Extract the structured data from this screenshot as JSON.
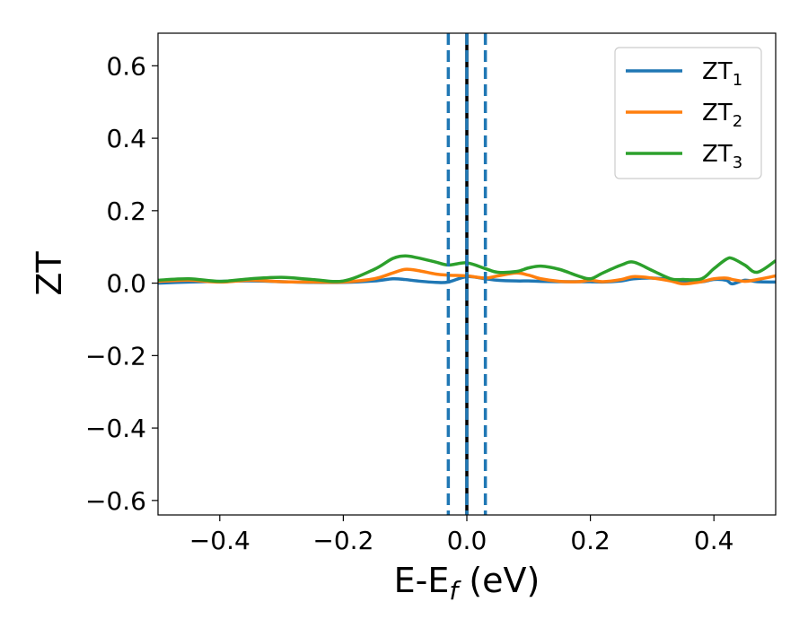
{
  "chart_data": {
    "type": "line",
    "title": "",
    "xlabel": {
      "base": "E-E",
      "sub": "f",
      "rest": " (eV)"
    },
    "ylabel": "ZT",
    "xlim": [
      -0.5,
      0.5
    ],
    "ylim": [
      -0.64,
      0.69
    ],
    "xticks": [
      -0.4,
      -0.2,
      0.0,
      0.2,
      0.4
    ],
    "xtick_labels": [
      "−0.4",
      "−0.2",
      "0.0",
      "0.2",
      "0.4"
    ],
    "yticks": [
      -0.6,
      -0.4,
      -0.2,
      0.0,
      0.2,
      0.4,
      0.6
    ],
    "ytick_labels": [
      "−0.6",
      "−0.4",
      "−0.2",
      "0.0",
      "0.2",
      "0.4",
      "0.6"
    ],
    "grid": false,
    "legend_position": "top-right",
    "vertical_lines": [
      {
        "x": -0.03,
        "style": "dashed",
        "color": "#1f77b4"
      },
      {
        "x": 0.0,
        "style": "solid",
        "color": "#000000"
      },
      {
        "x": 0.0,
        "style": "dashed",
        "color": "#1f77b4"
      },
      {
        "x": 0.03,
        "style": "dashed",
        "color": "#1f77b4"
      }
    ],
    "x": [
      -0.5,
      -0.45,
      -0.4,
      -0.35,
      -0.3,
      -0.25,
      -0.2,
      -0.15,
      -0.12,
      -0.1,
      -0.08,
      -0.05,
      -0.03,
      0.0,
      0.03,
      0.05,
      0.08,
      0.1,
      0.12,
      0.15,
      0.18,
      0.2,
      0.22,
      0.25,
      0.27,
      0.3,
      0.33,
      0.35,
      0.38,
      0.4,
      0.42,
      0.43,
      0.45,
      0.47,
      0.5
    ],
    "series": [
      {
        "name": {
          "base": "ZT",
          "sub": "1"
        },
        "color": "#1f77b4",
        "values": [
          0.0,
          0.003,
          0.005,
          0.006,
          0.004,
          0.002,
          0.002,
          0.006,
          0.012,
          0.01,
          0.006,
          0.002,
          0.003,
          0.018,
          0.012,
          0.008,
          0.006,
          0.006,
          0.005,
          0.004,
          0.004,
          0.004,
          0.003,
          0.006,
          0.012,
          0.014,
          0.01,
          0.006,
          0.004,
          0.01,
          0.008,
          -0.002,
          0.008,
          0.004,
          0.003
        ]
      },
      {
        "name": {
          "base": "ZT",
          "sub": "2"
        },
        "color": "#ff7f0e",
        "values": [
          0.005,
          0.008,
          0.003,
          0.008,
          0.004,
          0.003,
          0.003,
          0.012,
          0.028,
          0.038,
          0.035,
          0.025,
          0.022,
          0.02,
          0.014,
          0.02,
          0.028,
          0.022,
          0.012,
          0.005,
          0.004,
          0.008,
          0.004,
          0.01,
          0.018,
          0.014,
          0.006,
          -0.002,
          0.004,
          0.012,
          0.014,
          0.01,
          0.005,
          0.01,
          0.02
        ]
      },
      {
        "name": {
          "base": "ZT",
          "sub": "3"
        },
        "color": "#2ca02c",
        "values": [
          0.008,
          0.012,
          0.005,
          0.012,
          0.016,
          0.01,
          0.006,
          0.038,
          0.068,
          0.075,
          0.07,
          0.058,
          0.05,
          0.056,
          0.04,
          0.03,
          0.032,
          0.042,
          0.047,
          0.038,
          0.02,
          0.012,
          0.028,
          0.05,
          0.058,
          0.035,
          0.012,
          0.01,
          0.012,
          0.04,
          0.066,
          0.068,
          0.05,
          0.03,
          0.062
        ]
      }
    ]
  }
}
